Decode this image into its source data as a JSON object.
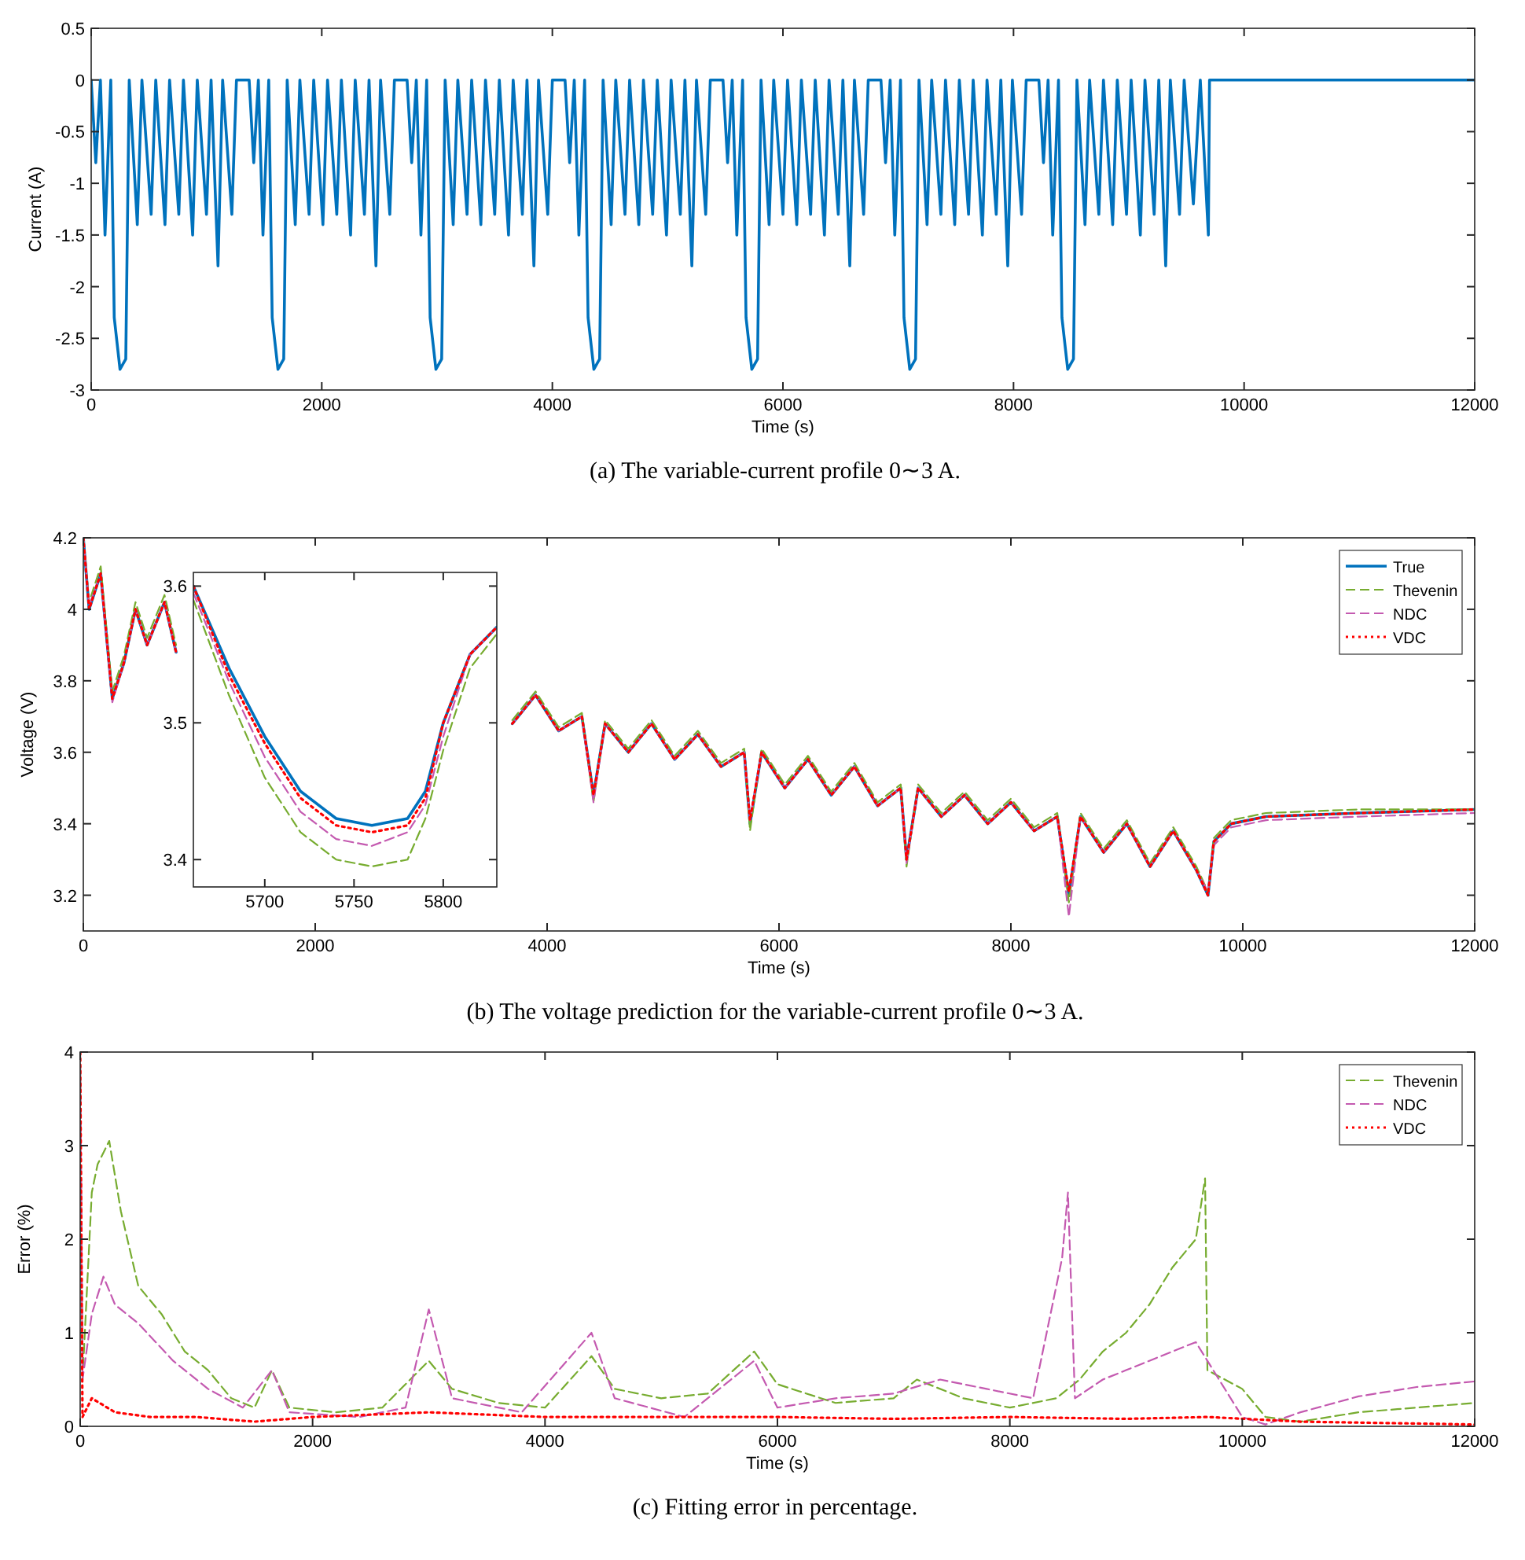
{
  "chart_data": [
    {
      "type": "line",
      "xlabel": "Time (s)",
      "ylabel": "Current (A)",
      "annotations": [
        "(a) The variable-current profile 0∼3 A."
      ],
      "xlim": [
        0,
        12000
      ],
      "xticks": [
        0,
        2000,
        4000,
        6000,
        8000,
        10000,
        12000
      ],
      "ylim": [
        -3,
        0.5
      ],
      "yticks": [
        -3,
        -2.5,
        -2,
        -1.5,
        -1,
        -0.5,
        0,
        0.5
      ],
      "grid": false,
      "legend": false,
      "series": [
        {
          "color": "#0072bd",
          "line_style": "solid",
          "x": [
            0,
            40,
            80,
            120,
            170,
            200,
            250,
            300,
            330,
            400,
            440,
            520,
            560,
            640,
            680,
            760,
            800,
            880,
            920,
            1000,
            1040,
            1100,
            1140,
            1220,
            1260,
            1370,
            1410,
            1450,
            1490,
            1540,
            1570,
            1620,
            1670,
            1700,
            1770,
            1810,
            1890,
            1930,
            2010,
            2050,
            2130,
            2170,
            2250,
            2290,
            2370,
            2410,
            2470,
            2510,
            2590,
            2630,
            2740,
            2780,
            2820,
            2860,
            2910,
            2940,
            2990,
            3040,
            3070,
            3140,
            3180,
            3260,
            3300,
            3380,
            3420,
            3500,
            3540,
            3620,
            3660,
            3740,
            3780,
            3840,
            3880,
            3960,
            4000,
            4110,
            4150,
            4190,
            4230,
            4280,
            4310,
            4360,
            4410,
            4440,
            4510,
            4550,
            4630,
            4670,
            4750,
            4790,
            4870,
            4910,
            4990,
            5030,
            5110,
            5150,
            5210,
            5250,
            5330,
            5370,
            5480,
            5520,
            5560,
            5600,
            5650,
            5680,
            5730,
            5780,
            5810,
            5880,
            5920,
            6000,
            6040,
            6120,
            6160,
            6240,
            6280,
            6360,
            6400,
            6480,
            6520,
            6580,
            6620,
            6700,
            6740,
            6850,
            6890,
            6930,
            6970,
            7020,
            7050,
            7100,
            7150,
            7180,
            7250,
            7290,
            7370,
            7410,
            7490,
            7530,
            7610,
            7650,
            7730,
            7770,
            7850,
            7890,
            7950,
            7990,
            8070,
            8110,
            8220,
            8260,
            8300,
            8340,
            8390,
            8420,
            8470,
            8520,
            8550,
            8620,
            8660,
            8740,
            8780,
            8860,
            8900,
            8980,
            9020,
            9100,
            9140,
            9220,
            9260,
            9320,
            9360,
            9440,
            9480,
            9560,
            9620,
            9690,
            9700,
            12000
          ],
          "values": [
            0,
            -0.8,
            0,
            -1.5,
            0,
            -2.3,
            -2.8,
            -2.7,
            0,
            -1.4,
            0,
            -1.3,
            0,
            -1.4,
            0,
            -1.3,
            0,
            -1.5,
            0,
            -1.3,
            0,
            -1.8,
            0,
            -1.3,
            0,
            0,
            -0.8,
            0,
            -1.5,
            0,
            -2.3,
            -2.8,
            -2.7,
            0,
            -1.4,
            0,
            -1.3,
            0,
            -1.4,
            0,
            -1.3,
            0,
            -1.5,
            0,
            -1.3,
            0,
            -1.8,
            0,
            -1.3,
            0,
            0,
            -0.8,
            0,
            -1.5,
            0,
            -2.3,
            -2.8,
            -2.7,
            0,
            -1.4,
            0,
            -1.3,
            0,
            -1.4,
            0,
            -1.3,
            0,
            -1.5,
            0,
            -1.3,
            0,
            -1.8,
            0,
            -1.3,
            0,
            0,
            -0.8,
            0,
            -1.5,
            0,
            -2.3,
            -2.8,
            -2.7,
            0,
            -1.4,
            0,
            -1.3,
            0,
            -1.4,
            0,
            -1.3,
            0,
            -1.5,
            0,
            -1.3,
            0,
            -1.8,
            0,
            -1.3,
            0,
            0,
            -0.8,
            0,
            -1.5,
            0,
            -2.3,
            -2.8,
            -2.7,
            0,
            -1.4,
            0,
            -1.3,
            0,
            -1.4,
            0,
            -1.3,
            0,
            -1.5,
            0,
            -1.3,
            0,
            -1.8,
            0,
            -1.3,
            0,
            0,
            -0.8,
            0,
            -1.5,
            0,
            -2.3,
            -2.8,
            -2.7,
            0,
            -1.4,
            0,
            -1.3,
            0,
            -1.4,
            0,
            -1.3,
            0,
            -1.5,
            0,
            -1.3,
            0,
            -1.8,
            0,
            -1.3,
            0,
            0,
            -0.8,
            0,
            -1.5,
            0,
            -2.3,
            -2.8,
            -2.7,
            0,
            -1.4,
            0,
            -1.3,
            0,
            -1.4,
            0,
            -1.3,
            0,
            -1.5,
            0,
            -1.3,
            0,
            -1.8,
            0,
            -1.3,
            0,
            -1.2,
            0,
            -1.5,
            0,
            0
          ]
        }
      ]
    },
    {
      "type": "line",
      "xlabel": "Time (s)",
      "ylabel": "Voltage (V)",
      "annotations": [
        "(b) The voltage prediction for the variable-current profile 0∼3 A."
      ],
      "xlim": [
        0,
        12000
      ],
      "xticks": [
        0,
        2000,
        4000,
        6000,
        8000,
        10000,
        12000
      ],
      "ylim": [
        3.1,
        4.2
      ],
      "yticks": [
        3.2,
        3.4,
        3.6,
        3.8,
        4,
        4.2
      ],
      "grid": false,
      "legend": "top right",
      "x": [
        0,
        50,
        150,
        250,
        350,
        450,
        550,
        700,
        800,
        1000,
        1200,
        1400,
        1550,
        1650,
        1750,
        1900,
        2100,
        2300,
        2500,
        2700,
        2900,
        3000,
        3100,
        3300,
        3500,
        3700,
        3900,
        4100,
        4300,
        4400,
        4500,
        4700,
        4900,
        5100,
        5300,
        5500,
        5700,
        5750,
        5850,
        6050,
        6250,
        6450,
        6650,
        6850,
        7050,
        7100,
        7200,
        7400,
        7600,
        7800,
        8000,
        8200,
        8400,
        8500,
        8600,
        8800,
        9000,
        9200,
        9400,
        9600,
        9700,
        9750,
        9900,
        10200,
        11000,
        12000
      ],
      "series": [
        {
          "name": "True",
          "color": "#0072bd",
          "line_style": "solid",
          "values": [
            4.2,
            4.0,
            4.1,
            3.75,
            3.85,
            4.0,
            3.9,
            4.02,
            3.88,
            null,
            null,
            null,
            null,
            null,
            null,
            null,
            null,
            null,
            null,
            null,
            null,
            null,
            null,
            null,
            null,
            3.68,
            3.76,
            3.66,
            3.7,
            3.48,
            3.68,
            3.6,
            3.68,
            3.58,
            3.65,
            3.56,
            3.6,
            3.4,
            3.6,
            3.5,
            3.58,
            3.48,
            3.56,
            3.45,
            3.5,
            3.3,
            3.5,
            3.42,
            3.48,
            3.4,
            3.46,
            3.38,
            3.42,
            3.2,
            3.42,
            3.32,
            3.4,
            3.28,
            3.38,
            3.27,
            3.2,
            3.35,
            3.4,
            3.42,
            3.43,
            3.44
          ]
        },
        {
          "name": "Thevenin",
          "color": "#77ac30",
          "line_style": "dashed",
          "values": [
            4.2,
            4.02,
            4.12,
            3.77,
            3.87,
            4.02,
            3.92,
            4.04,
            3.9,
            null,
            null,
            null,
            null,
            null,
            null,
            null,
            null,
            null,
            null,
            null,
            null,
            null,
            null,
            null,
            null,
            3.69,
            3.77,
            3.67,
            3.71,
            3.46,
            3.69,
            3.61,
            3.69,
            3.59,
            3.66,
            3.57,
            3.61,
            3.38,
            3.61,
            3.51,
            3.59,
            3.49,
            3.57,
            3.46,
            3.51,
            3.28,
            3.51,
            3.43,
            3.49,
            3.41,
            3.47,
            3.39,
            3.43,
            3.18,
            3.43,
            3.33,
            3.41,
            3.29,
            3.39,
            3.28,
            3.21,
            3.36,
            3.41,
            3.43,
            3.44,
            3.44
          ]
        },
        {
          "name": "NDC",
          "color": "#c45ab0",
          "line_style": "dashed",
          "values": [
            4.2,
            4.01,
            4.1,
            3.74,
            3.85,
            4.0,
            3.9,
            4.02,
            3.88,
            null,
            null,
            null,
            null,
            null,
            null,
            null,
            null,
            null,
            null,
            null,
            null,
            null,
            null,
            null,
            null,
            3.68,
            3.76,
            3.66,
            3.7,
            3.46,
            3.68,
            3.6,
            3.68,
            3.58,
            3.65,
            3.56,
            3.6,
            3.41,
            3.6,
            3.5,
            3.58,
            3.48,
            3.56,
            3.45,
            3.5,
            3.29,
            3.5,
            3.42,
            3.48,
            3.4,
            3.46,
            3.38,
            3.42,
            3.14,
            3.42,
            3.32,
            3.4,
            3.28,
            3.38,
            3.27,
            3.21,
            3.34,
            3.39,
            3.41,
            3.42,
            3.43
          ]
        },
        {
          "name": "VDC",
          "color": "#ff0000",
          "line_style": "dotted",
          "values": [
            4.2,
            4.0,
            4.1,
            3.75,
            3.85,
            4.0,
            3.9,
            4.02,
            3.88,
            null,
            null,
            null,
            null,
            null,
            null,
            null,
            null,
            null,
            null,
            null,
            null,
            null,
            null,
            null,
            null,
            3.68,
            3.76,
            3.66,
            3.7,
            3.48,
            3.68,
            3.6,
            3.68,
            3.58,
            3.65,
            3.56,
            3.6,
            3.41,
            3.6,
            3.5,
            3.58,
            3.48,
            3.56,
            3.45,
            3.5,
            3.3,
            3.5,
            3.42,
            3.48,
            3.4,
            3.46,
            3.38,
            3.42,
            3.21,
            3.42,
            3.32,
            3.4,
            3.28,
            3.38,
            3.27,
            3.2,
            3.35,
            3.4,
            3.42,
            3.43,
            3.44
          ]
        }
      ]
    },
    {
      "type": "line",
      "xlim": [
        5660,
        5830
      ],
      "xticks": [
        5700,
        5750,
        5800
      ],
      "ylim": [
        3.38,
        3.61
      ],
      "yticks": [
        3.4,
        3.5,
        3.6
      ],
      "grid": false,
      "legend": false,
      "x": [
        5660,
        5680,
        5700,
        5720,
        5740,
        5760,
        5780,
        5790,
        5800,
        5815,
        5830
      ],
      "series": [
        {
          "color": "#0072bd",
          "line_style": "solid",
          "values": [
            3.6,
            3.54,
            3.49,
            3.45,
            3.43,
            3.425,
            3.43,
            3.45,
            3.5,
            3.55,
            3.57
          ]
        },
        {
          "color": "#77ac30",
          "line_style": "dashed",
          "values": [
            3.59,
            3.52,
            3.46,
            3.42,
            3.4,
            3.395,
            3.4,
            3.43,
            3.48,
            3.54,
            3.565
          ]
        },
        {
          "color": "#c45ab0",
          "line_style": "dashed",
          "values": [
            3.595,
            3.53,
            3.475,
            3.435,
            3.415,
            3.41,
            3.42,
            3.44,
            3.49,
            3.55,
            3.57
          ]
        },
        {
          "color": "#ff0000",
          "line_style": "dotted",
          "values": [
            3.6,
            3.535,
            3.485,
            3.445,
            3.425,
            3.42,
            3.425,
            3.445,
            3.5,
            3.55,
            3.57
          ]
        }
      ]
    },
    {
      "type": "line",
      "xlabel": "Time (s)",
      "ylabel": "Error (%)",
      "annotations": [
        "(c) Fitting error in percentage."
      ],
      "xlim": [
        0,
        12000
      ],
      "xticks": [
        0,
        2000,
        4000,
        6000,
        8000,
        10000,
        12000
      ],
      "ylim": [
        0,
        4
      ],
      "yticks": [
        0,
        1,
        2,
        3,
        4
      ],
      "grid": false,
      "legend": "top right",
      "series": [
        {
          "name": "Thevenin",
          "color": "#77ac30",
          "line_style": "dashed",
          "x": [
            0,
            20,
            100,
            150,
            250,
            350,
            500,
            700,
            900,
            1100,
            1300,
            1500,
            1650,
            1800,
            2200,
            2600,
            3000,
            3200,
            3600,
            4000,
            4400,
            4600,
            5000,
            5400,
            5800,
            6000,
            6500,
            7000,
            7200,
            7600,
            8000,
            8400,
            8600,
            8800,
            9000,
            9200,
            9400,
            9600,
            9680,
            9700,
            10000,
            10200,
            10500,
            11000,
            12000
          ],
          "values": [
            4,
            0.5,
            2.5,
            2.8,
            3.05,
            2.3,
            1.5,
            1.2,
            0.8,
            0.6,
            0.3,
            0.2,
            0.6,
            0.2,
            0.15,
            0.2,
            0.7,
            0.4,
            0.25,
            0.2,
            0.75,
            0.4,
            0.3,
            0.35,
            0.8,
            0.45,
            0.25,
            0.3,
            0.5,
            0.3,
            0.2,
            0.3,
            0.5,
            0.8,
            1.0,
            1.3,
            1.7,
            2.0,
            2.65,
            0.6,
            0.4,
            0.1,
            0.05,
            0.15,
            0.25
          ]
        },
        {
          "name": "NDC",
          "color": "#c45ab0",
          "line_style": "dashed",
          "x": [
            0,
            20,
            100,
            200,
            300,
            500,
            800,
            1100,
            1400,
            1650,
            1800,
            2400,
            2800,
            3000,
            3200,
            3800,
            4400,
            4600,
            5200,
            5800,
            6000,
            6500,
            7000,
            7400,
            7800,
            8200,
            8450,
            8500,
            8560,
            8800,
            9000,
            9200,
            9400,
            9600,
            9700,
            10000,
            10200,
            10500,
            11000,
            11500,
            12000
          ],
          "values": [
            4,
            0.5,
            1.2,
            1.6,
            1.3,
            1.1,
            0.7,
            0.4,
            0.2,
            0.6,
            0.15,
            0.1,
            0.2,
            1.25,
            0.3,
            0.15,
            1.0,
            0.3,
            0.1,
            0.7,
            0.2,
            0.3,
            0.35,
            0.5,
            0.4,
            0.3,
            1.8,
            2.5,
            0.3,
            0.5,
            0.6,
            0.7,
            0.8,
            0.9,
            0.7,
            0.1,
            0.02,
            0.15,
            0.32,
            0.42,
            0.48
          ]
        },
        {
          "name": "VDC",
          "color": "#ff0000",
          "line_style": "dotted",
          "x": [
            0,
            20,
            100,
            300,
            600,
            1000,
            1500,
            2000,
            3000,
            4000,
            5000,
            6000,
            7000,
            8000,
            9000,
            9700,
            10500,
            12000
          ],
          "values": [
            4,
            0.1,
            0.3,
            0.15,
            0.1,
            0.1,
            0.05,
            0.1,
            0.15,
            0.1,
            0.1,
            0.1,
            0.08,
            0.1,
            0.08,
            0.1,
            0.05,
            0.02
          ]
        }
      ]
    }
  ]
}
